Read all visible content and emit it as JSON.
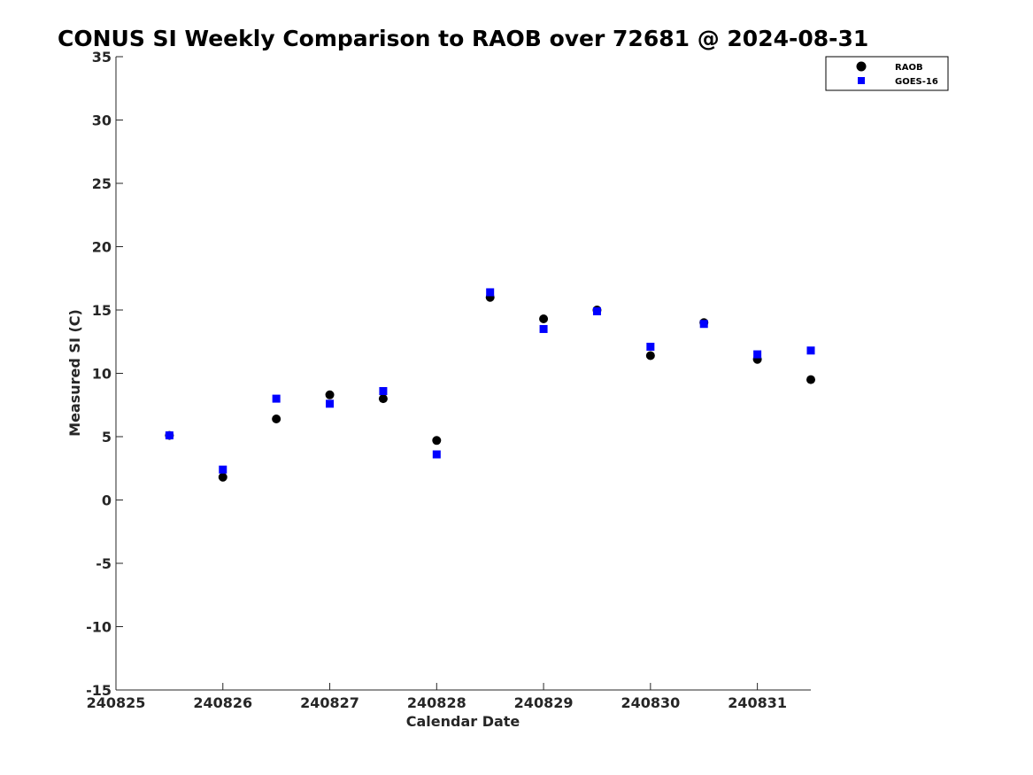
{
  "chart_data": {
    "type": "scatter",
    "title": "CONUS SI Weekly Comparison to RAOB over 72681 @ 2024-08-31",
    "xlabel": "Calendar Date",
    "ylabel": "Measured SI (C)",
    "xlim": [
      240825,
      240831.5
    ],
    "ylim": [
      -15,
      35
    ],
    "xticks": [
      240825,
      240826,
      240827,
      240828,
      240829,
      240830,
      240831
    ],
    "xtick_labels": [
      "240825",
      "240826",
      "240827",
      "240828",
      "240829",
      "240830",
      "240831"
    ],
    "yticks": [
      -15,
      -10,
      -5,
      0,
      5,
      10,
      15,
      20,
      25,
      30,
      35
    ],
    "ytick_labels": [
      "-15",
      "-10",
      "-5",
      "0",
      "5",
      "10",
      "15",
      "20",
      "25",
      "30",
      "35"
    ],
    "grid": false,
    "legend_position": "top-right",
    "series": [
      {
        "name": "RAOB",
        "marker": "circle",
        "color": "#000000",
        "x": [
          240825.5,
          240826,
          240826.5,
          240827,
          240827.5,
          240828,
          240828.5,
          240829,
          240829.5,
          240830,
          240830.5,
          240831,
          240831.5
        ],
        "y": [
          5.1,
          1.8,
          6.4,
          8.3,
          8.0,
          4.7,
          16.0,
          14.3,
          15.0,
          11.4,
          14.0,
          11.1,
          9.5
        ]
      },
      {
        "name": "GOES-16",
        "marker": "square",
        "color": "#0000ff",
        "x": [
          240825.5,
          240826,
          240826.5,
          240827,
          240827.5,
          240828,
          240828.5,
          240829,
          240829.5,
          240830,
          240830.5,
          240831,
          240831.5
        ],
        "y": [
          5.1,
          2.4,
          8.0,
          7.6,
          8.6,
          3.6,
          16.4,
          13.5,
          14.9,
          12.1,
          13.9,
          11.5,
          11.8
        ]
      }
    ]
  }
}
